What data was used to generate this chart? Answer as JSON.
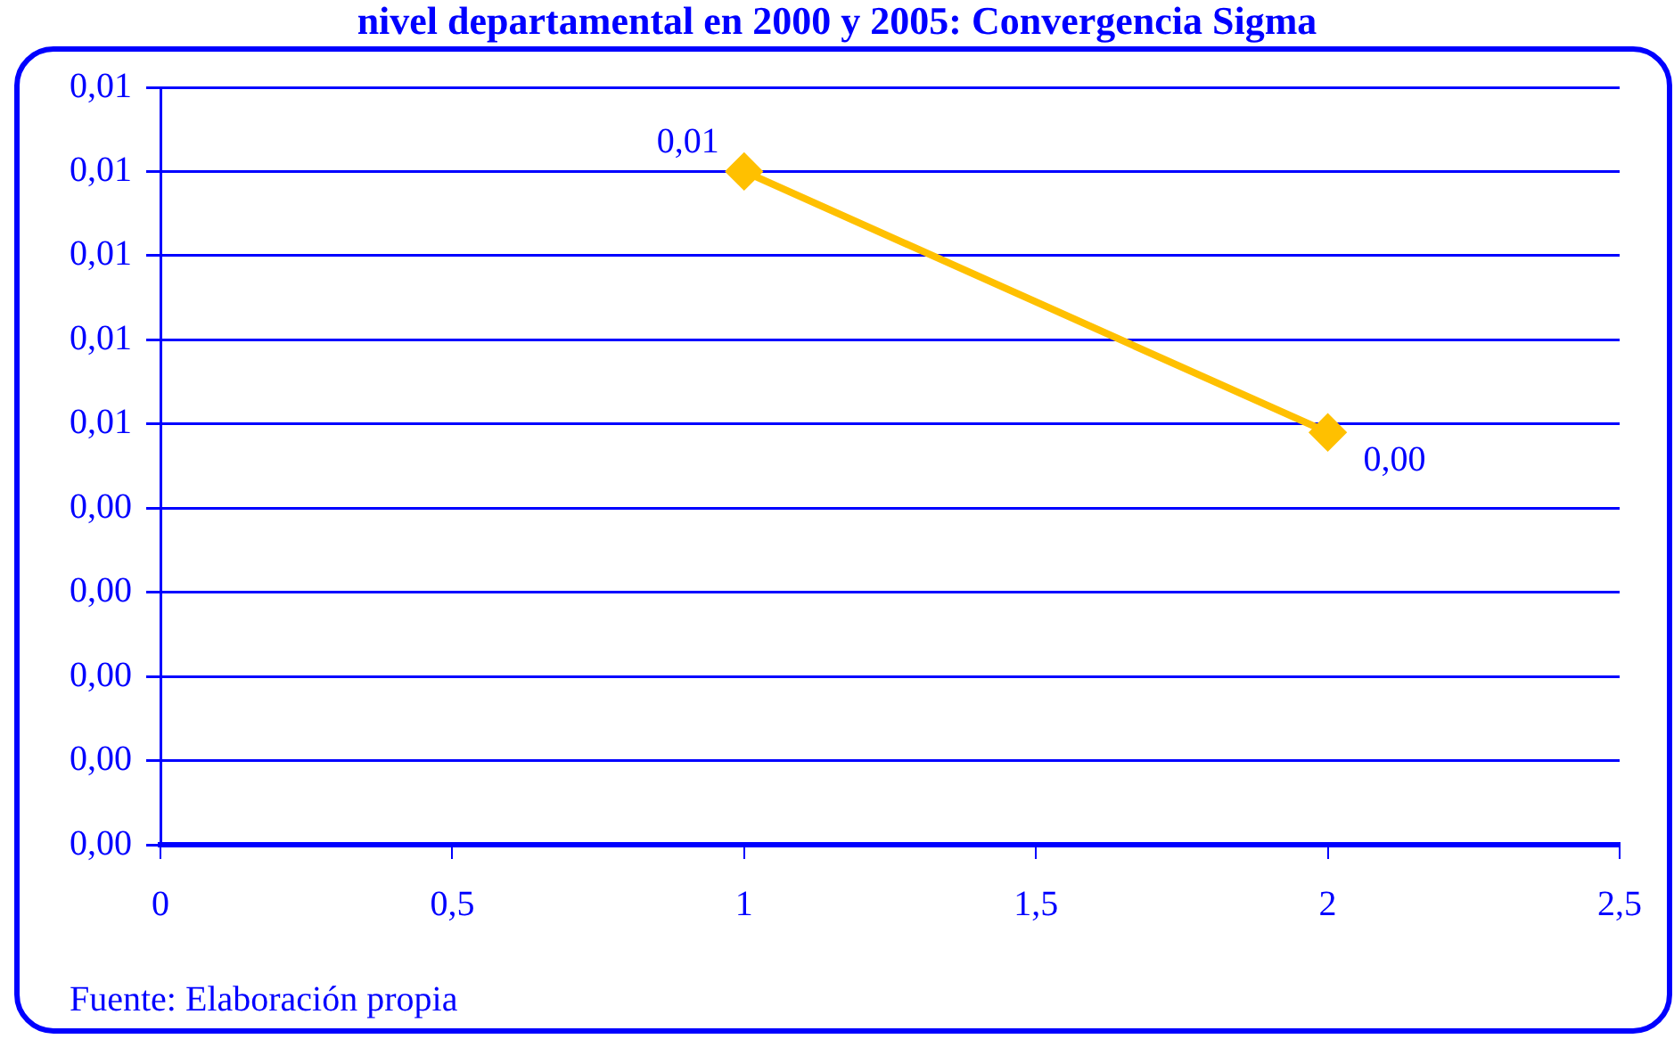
{
  "chart_data": {
    "type": "line",
    "title": "nivel departamental en 2000 y 2005: Convergencia Sigma",
    "x": [
      1,
      2
    ],
    "series": [
      {
        "color": "#ffc000",
        "values": [
          0.008,
          0.0049
        ],
        "value_labels": [
          "0,01",
          "0,00"
        ]
      }
    ],
    "xlim": [
      0,
      2.5
    ],
    "xticks": [
      0,
      {
        "value": 0.5,
        "label": "0,5"
      },
      1,
      {
        "value": 1.5,
        "label": "1,5"
      },
      2,
      {
        "value": 2.5,
        "label": "2,5"
      }
    ],
    "ylim": [
      0,
      0.009
    ],
    "yticks": [
      {
        "value": 0,
        "label": "0,00"
      },
      {
        "value": 0.001,
        "label": "0,00"
      },
      {
        "value": 0.002,
        "label": "0,00"
      },
      {
        "value": 0.003,
        "label": "0,00"
      },
      {
        "value": 0.004,
        "label": "0,00"
      },
      {
        "value": 0.005,
        "label": "0,01"
      },
      {
        "value": 0.006,
        "label": "0,01"
      },
      {
        "value": 0.007,
        "label": "0,01"
      },
      {
        "value": 0.008,
        "label": "0,01"
      },
      {
        "value": 0.009,
        "label": "0,01"
      }
    ],
    "grid": "y",
    "marker": "diamond",
    "line_style": "solid",
    "legend": false,
    "annotations": [
      "Fuente: Elaboración propia"
    ]
  }
}
